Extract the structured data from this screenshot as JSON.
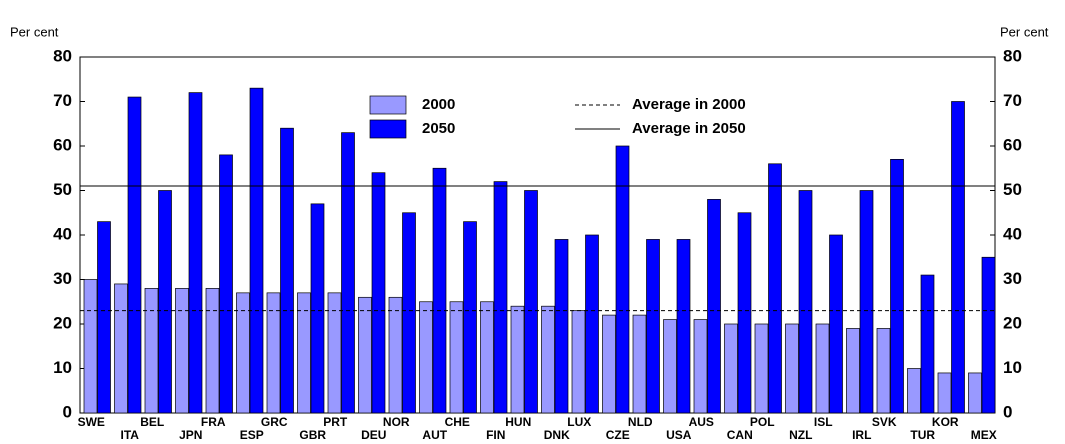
{
  "chart_data": {
    "type": "bar",
    "ylabel": "Per cent",
    "y2label": "Per cent",
    "categories": [
      "SWE",
      "ITA",
      "BEL",
      "JPN",
      "FRA",
      "ESP",
      "GRC",
      "GBR",
      "PRT",
      "DEU",
      "NOR",
      "AUT",
      "CHE",
      "FIN",
      "HUN",
      "DNK",
      "LUX",
      "CZE",
      "NLD",
      "USA",
      "AUS",
      "CAN",
      "POL",
      "NZL",
      "ISL",
      "IRL",
      "SVK",
      "TUR",
      "KOR",
      "MEX"
    ],
    "series": [
      {
        "name": "2000",
        "color": "#9999ff",
        "values": [
          30,
          29,
          28,
          28,
          28,
          27,
          27,
          27,
          27,
          26,
          26,
          25,
          25,
          25,
          24,
          24,
          23,
          22,
          22,
          21,
          21,
          20,
          20,
          20,
          20,
          19,
          19,
          10,
          9,
          9
        ]
      },
      {
        "name": "2050",
        "color": "#0000ff",
        "values": [
          43,
          71,
          50,
          72,
          58,
          73,
          64,
          47,
          63,
          54,
          45,
          55,
          43,
          52,
          50,
          39,
          40,
          60,
          39,
          39,
          48,
          45,
          56,
          50,
          40,
          50,
          57,
          31,
          70,
          35
        ]
      }
    ],
    "reference_lines": [
      {
        "name": "Average in 2000",
        "value": 23,
        "style": "dashed"
      },
      {
        "name": "Average in 2050",
        "value": 51,
        "style": "solid"
      }
    ],
    "ylim": [
      0,
      80
    ],
    "yticks": [
      0,
      10,
      20,
      30,
      40,
      50,
      60,
      70,
      80
    ],
    "y2lim": [
      0,
      80
    ],
    "y2ticks": [
      0,
      10,
      20,
      30,
      40,
      50,
      60,
      70,
      80
    ],
    "grid": false
  }
}
